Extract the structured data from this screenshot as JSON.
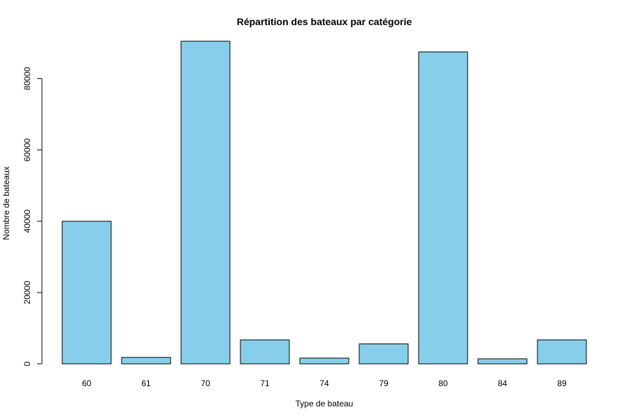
{
  "chart_data": {
    "type": "bar",
    "title": "Répartition des bateaux par catégorie",
    "xlabel": "Type de bateau",
    "ylabel": "Nombre de bateaux",
    "categories": [
      "60",
      "61",
      "70",
      "71",
      "74",
      "79",
      "80",
      "84",
      "89"
    ],
    "values": [
      40000,
      1800,
      90500,
      6700,
      1600,
      5600,
      87500,
      1400,
      6700
    ],
    "ylim": [
      0,
      90500
    ],
    "yticks": [
      0,
      20000,
      40000,
      60000,
      80000
    ],
    "ytick_labels": [
      "0",
      "20000",
      "40000",
      "60000",
      "80000"
    ],
    "bar_color": "#87CEEB",
    "bar_edge_color": "#000000",
    "grid": false,
    "legend": "none"
  }
}
